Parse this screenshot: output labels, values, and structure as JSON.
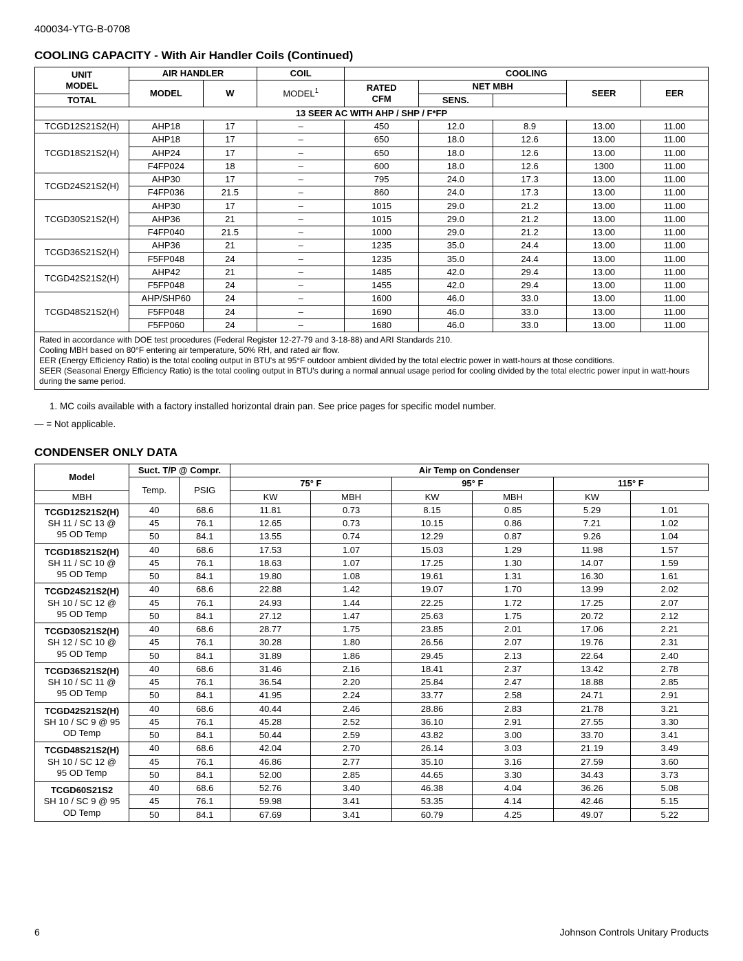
{
  "doc_id": "400034-YTG-B-0708",
  "page_number": "6",
  "footer_right": "Johnson Controls Unitary Products",
  "table1": {
    "title": "COOLING CAPACITY - With Air Handler Coils (Continued)",
    "hdr": {
      "unit_model_a": "UNIT",
      "unit_model_b": "MODEL",
      "air_handler": "AIR HANDLER",
      "ah_model": "MODEL",
      "ah_w": "W",
      "coil": "COIL",
      "coil_model": "MODEL",
      "coil_model_sup": "1",
      "cooling": "COOLING",
      "rated_cfm_a": "RATED",
      "rated_cfm_b": "CFM",
      "net_mbh": "NET MBH",
      "total": "TOTAL",
      "sens": "SENS.",
      "seer": "SEER",
      "eer": "EER"
    },
    "section_label": "13 SEER AC WITH AHP / SHP / F*FP",
    "groups": [
      {
        "unit": "TCGD12S21S2(H)",
        "rows": [
          {
            "ah": "AHP18",
            "w": "17",
            "coil": "–",
            "cfm": "450",
            "total": "12.0",
            "sens": "8.9",
            "seer": "13.00",
            "eer": "11.00"
          }
        ]
      },
      {
        "unit": "TCGD18S21S2(H)",
        "rows": [
          {
            "ah": "AHP18",
            "w": "17",
            "coil": "–",
            "cfm": "650",
            "total": "18.0",
            "sens": "12.6",
            "seer": "13.00",
            "eer": "11.00"
          },
          {
            "ah": "AHP24",
            "w": "17",
            "coil": "–",
            "cfm": "650",
            "total": "18.0",
            "sens": "12.6",
            "seer": "13.00",
            "eer": "11.00"
          },
          {
            "ah": "F4FP024",
            "w": "18",
            "coil": "–",
            "cfm": "600",
            "total": "18.0",
            "sens": "12.6",
            "seer": "1300",
            "eer": "11.00"
          }
        ]
      },
      {
        "unit": "TCGD24S21S2(H)",
        "rows": [
          {
            "ah": "AHP30",
            "w": "17",
            "coil": "–",
            "cfm": "795",
            "total": "24.0",
            "sens": "17.3",
            "seer": "13.00",
            "eer": "11.00"
          },
          {
            "ah": "F4FP036",
            "w": "21.5",
            "coil": "–",
            "cfm": "860",
            "total": "24.0",
            "sens": "17.3",
            "seer": "13.00",
            "eer": "11.00"
          }
        ]
      },
      {
        "unit": "TCGD30S21S2(H)",
        "rows": [
          {
            "ah": "AHP30",
            "w": "17",
            "coil": "–",
            "cfm": "1015",
            "total": "29.0",
            "sens": "21.2",
            "seer": "13.00",
            "eer": "11.00"
          },
          {
            "ah": "AHP36",
            "w": "21",
            "coil": "–",
            "cfm": "1015",
            "total": "29.0",
            "sens": "21.2",
            "seer": "13.00",
            "eer": "11.00"
          },
          {
            "ah": "F4FP040",
            "w": "21.5",
            "coil": "–",
            "cfm": "1000",
            "total": "29.0",
            "sens": "21.2",
            "seer": "13.00",
            "eer": "11.00"
          }
        ]
      },
      {
        "unit": "TCGD36S21S2(H)",
        "rows": [
          {
            "ah": "AHP36",
            "w": "21",
            "coil": "–",
            "cfm": "1235",
            "total": "35.0",
            "sens": "24.4",
            "seer": "13.00",
            "eer": "11.00"
          },
          {
            "ah": "F5FP048",
            "w": "24",
            "coil": "–",
            "cfm": "1235",
            "total": "35.0",
            "sens": "24.4",
            "seer": "13.00",
            "eer": "11.00"
          }
        ]
      },
      {
        "unit": "TCGD42S21S2(H)",
        "rows": [
          {
            "ah": "AHP42",
            "w": "21",
            "coil": "–",
            "cfm": "1485",
            "total": "42.0",
            "sens": "29.4",
            "seer": "13.00",
            "eer": "11.00"
          },
          {
            "ah": "F5FP048",
            "w": "24",
            "coil": "–",
            "cfm": "1455",
            "total": "42.0",
            "sens": "29.4",
            "seer": "13.00",
            "eer": "11.00"
          }
        ]
      },
      {
        "unit": "TCGD48S21S2(H)",
        "rows": [
          {
            "ah": "AHP/SHP60",
            "w": "24",
            "coil": "–",
            "cfm": "1600",
            "total": "46.0",
            "sens": "33.0",
            "seer": "13.00",
            "eer": "11.00"
          },
          {
            "ah": "F5FP048",
            "w": "24",
            "coil": "–",
            "cfm": "1690",
            "total": "46.0",
            "sens": "33.0",
            "seer": "13.00",
            "eer": "11.00"
          },
          {
            "ah": "F5FP060",
            "w": "24",
            "coil": "–",
            "cfm": "1680",
            "total": "46.0",
            "sens": "33.0",
            "seer": "13.00",
            "eer": "11.00"
          }
        ]
      }
    ],
    "notes": [
      "Rated in accordance with DOE test procedures (Federal Register 12-27-79 and 3-18-88) and ARI Standards 210.",
      "Cooling MBH based on 80°F entering air temperature, 50% RH, and rated air flow.",
      "EER (Energy Efficiency Ratio) is the total cooling output in BTU's at 95°F outdoor ambient divided by the total electric power in watt-hours at those conditions.",
      "SEER (Seasonal Energy Efficiency Ratio) is the total cooling output in BTU's during a normal annual usage period for cooling divided by the total electric power input in watt-hours during the same period."
    ],
    "footnote1": "1. MC coils available with a factory installed horizontal drain pan. See price pages for specific model number.",
    "footnote_na": "— = Not applicable."
  },
  "table2": {
    "title": "CONDENSER ONLY DATA",
    "hdr": {
      "model": "Model",
      "suct": "Suct. T/P @ Compr.",
      "temp": "Temp.",
      "psig": "PSIG",
      "air_temp": "Air Temp on Condenser",
      "t75": "75° F",
      "t95": "95° F",
      "t115": "115° F",
      "mbh": "MBH",
      "kw": "KW"
    },
    "groups": [
      {
        "model": [
          "TCGD12S21S2(H)",
          "SH 11 / SC 13 @",
          "95 OD Temp"
        ],
        "rows": [
          {
            "temp": "40",
            "psig": "68.6",
            "m75": "11.81",
            "k75": "0.73",
            "m95": "8.15",
            "k95": "0.85",
            "m115": "5.29",
            "k115": "1.01"
          },
          {
            "temp": "45",
            "psig": "76.1",
            "m75": "12.65",
            "k75": "0.73",
            "m95": "10.15",
            "k95": "0.86",
            "m115": "7.21",
            "k115": "1.02"
          },
          {
            "temp": "50",
            "psig": "84.1",
            "m75": "13.55",
            "k75": "0.74",
            "m95": "12.29",
            "k95": "0.87",
            "m115": "9.26",
            "k115": "1.04"
          }
        ]
      },
      {
        "model": [
          "TCGD18S21S2(H)",
          "SH 11 / SC 10 @",
          "95 OD Temp"
        ],
        "rows": [
          {
            "temp": "40",
            "psig": "68.6",
            "m75": "17.53",
            "k75": "1.07",
            "m95": "15.03",
            "k95": "1.29",
            "m115": "11.98",
            "k115": "1.57"
          },
          {
            "temp": "45",
            "psig": "76.1",
            "m75": "18.63",
            "k75": "1.07",
            "m95": "17.25",
            "k95": "1.30",
            "m115": "14.07",
            "k115": "1.59"
          },
          {
            "temp": "50",
            "psig": "84.1",
            "m75": "19.80",
            "k75": "1.08",
            "m95": "19.61",
            "k95": "1.31",
            "m115": "16.30",
            "k115": "1.61"
          }
        ]
      },
      {
        "model": [
          "TCGD24S21S2(H)",
          "SH 10 / SC 12 @",
          "95 OD Temp"
        ],
        "rows": [
          {
            "temp": "40",
            "psig": "68.6",
            "m75": "22.88",
            "k75": "1.42",
            "m95": "19.07",
            "k95": "1.70",
            "m115": "13.99",
            "k115": "2.02"
          },
          {
            "temp": "45",
            "psig": "76.1",
            "m75": "24.93",
            "k75": "1.44",
            "m95": "22.25",
            "k95": "1.72",
            "m115": "17.25",
            "k115": "2.07"
          },
          {
            "temp": "50",
            "psig": "84.1",
            "m75": "27.12",
            "k75": "1.47",
            "m95": "25.63",
            "k95": "1.75",
            "m115": "20.72",
            "k115": "2.12"
          }
        ]
      },
      {
        "model": [
          "TCGD30S21S2(H)",
          "SH 12 / SC 10 @",
          "95 OD Temp"
        ],
        "rows": [
          {
            "temp": "40",
            "psig": "68.6",
            "m75": "28.77",
            "k75": "1.75",
            "m95": "23.85",
            "k95": "2.01",
            "m115": "17.06",
            "k115": "2.21"
          },
          {
            "temp": "45",
            "psig": "76.1",
            "m75": "30.28",
            "k75": "1.80",
            "m95": "26.56",
            "k95": "2.07",
            "m115": "19.76",
            "k115": "2.31"
          },
          {
            "temp": "50",
            "psig": "84.1",
            "m75": "31.89",
            "k75": "1.86",
            "m95": "29.45",
            "k95": "2.13",
            "m115": "22.64",
            "k115": "2.40"
          }
        ]
      },
      {
        "model": [
          "TCGD36S21S2(H)",
          "SH 10 / SC 11 @",
          "95 OD Temp"
        ],
        "rows": [
          {
            "temp": "40",
            "psig": "68.6",
            "m75": "31.46",
            "k75": "2.16",
            "m95": "18.41",
            "k95": "2.37",
            "m115": "13.42",
            "k115": "2.78"
          },
          {
            "temp": "45",
            "psig": "76.1",
            "m75": "36.54",
            "k75": "2.20",
            "m95": "25.84",
            "k95": "2.47",
            "m115": "18.88",
            "k115": "2.85"
          },
          {
            "temp": "50",
            "psig": "84.1",
            "m75": "41.95",
            "k75": "2.24",
            "m95": "33.77",
            "k95": "2.58",
            "m115": "24.71",
            "k115": "2.91"
          }
        ]
      },
      {
        "model": [
          "TCGD42S21S2(H)",
          "SH 10 / SC 9 @ 95",
          "OD Temp"
        ],
        "rows": [
          {
            "temp": "40",
            "psig": "68.6",
            "m75": "40.44",
            "k75": "2.46",
            "m95": "28.86",
            "k95": "2.83",
            "m115": "21.78",
            "k115": "3.21"
          },
          {
            "temp": "45",
            "psig": "76.1",
            "m75": "45.28",
            "k75": "2.52",
            "m95": "36.10",
            "k95": "2.91",
            "m115": "27.55",
            "k115": "3.30"
          },
          {
            "temp": "50",
            "psig": "84.1",
            "m75": "50.44",
            "k75": "2.59",
            "m95": "43.82",
            "k95": "3.00",
            "m115": "33.70",
            "k115": "3.41"
          }
        ]
      },
      {
        "model": [
          "TCGD48S21S2(H)",
          "SH 10 / SC 12 @",
          "95 OD Temp"
        ],
        "rows": [
          {
            "temp": "40",
            "psig": "68.6",
            "m75": "42.04",
            "k75": "2.70",
            "m95": "26.14",
            "k95": "3.03",
            "m115": "21.19",
            "k115": "3.49"
          },
          {
            "temp": "45",
            "psig": "76.1",
            "m75": "46.86",
            "k75": "2.77",
            "m95": "35.10",
            "k95": "3.16",
            "m115": "27.59",
            "k115": "3.60"
          },
          {
            "temp": "50",
            "psig": "84.1",
            "m75": "52.00",
            "k75": "2.85",
            "m95": "44.65",
            "k95": "3.30",
            "m115": "34.43",
            "k115": "3.73"
          }
        ]
      },
      {
        "model": [
          "TCGD60S21S2",
          "SH 10 / SC 9 @ 95",
          "OD Temp"
        ],
        "rows": [
          {
            "temp": "40",
            "psig": "68.6",
            "m75": "52.76",
            "k75": "3.40",
            "m95": "46.38",
            "k95": "4.04",
            "m115": "36.26",
            "k115": "5.08"
          },
          {
            "temp": "45",
            "psig": "76.1",
            "m75": "59.98",
            "k75": "3.41",
            "m95": "53.35",
            "k95": "4.14",
            "m115": "42.46",
            "k115": "5.15"
          },
          {
            "temp": "50",
            "psig": "84.1",
            "m75": "67.69",
            "k75": "3.41",
            "m95": "60.79",
            "k95": "4.25",
            "m115": "49.07",
            "k115": "5.22"
          }
        ]
      }
    ]
  }
}
